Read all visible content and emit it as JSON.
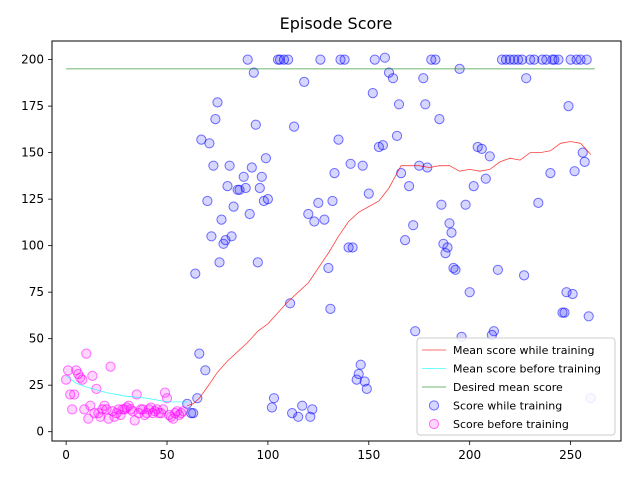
{
  "chart_data": {
    "type": "scatter",
    "title": "Episode Score",
    "xlabel": "",
    "ylabel": "",
    "xlim": [
      -7,
      275
    ],
    "ylim": [
      -5,
      210
    ],
    "x_ticks": [
      0,
      50,
      100,
      150,
      200,
      250
    ],
    "y_ticks": [
      0,
      25,
      50,
      75,
      100,
      125,
      150,
      175,
      200
    ],
    "grid": false,
    "legend_position": "lower-right",
    "colors": {
      "training_line": "#ff0000",
      "before_line": "#00ffff",
      "desired_line": "#008000",
      "training_points": "#0000ff",
      "before_points": "#ff00ff"
    },
    "series": [
      {
        "name": "Mean score while training",
        "kind": "line",
        "x": [
          60,
          63,
          66,
          70,
          75,
          80,
          85,
          90,
          95,
          100,
          105,
          110,
          115,
          120,
          125,
          130,
          135,
          140,
          145,
          150,
          155,
          160,
          163,
          166,
          170,
          175,
          180,
          185,
          190,
          195,
          200,
          205,
          210,
          215,
          220,
          225,
          230,
          235,
          240,
          245,
          250,
          255,
          260
        ],
        "y": [
          14,
          15,
          18,
          24,
          32,
          38,
          43,
          48,
          54,
          58,
          64,
          70,
          75,
          80,
          88,
          96,
          105,
          113,
          118,
          121,
          124,
          131,
          137,
          143,
          143,
          143,
          142,
          143,
          143,
          140,
          141,
          140,
          141,
          145,
          147,
          146,
          150,
          150,
          151,
          155,
          156,
          155,
          149
        ]
      },
      {
        "name": "Mean score before training",
        "kind": "line",
        "x": [
          0,
          5,
          10,
          20,
          30,
          40,
          50,
          60
        ],
        "y": [
          30,
          26,
          24,
          21,
          19,
          18,
          16,
          16
        ]
      },
      {
        "name": "Desired mean score",
        "kind": "line",
        "x": [
          0,
          262
        ],
        "y": [
          195,
          195
        ]
      },
      {
        "name": "Score while training",
        "kind": "scatter",
        "x": [
          60,
          62,
          63,
          64,
          65,
          66,
          67,
          69,
          70,
          71,
          72,
          73,
          74,
          75,
          76,
          77,
          78,
          79,
          80,
          81,
          82,
          83,
          85,
          86,
          88,
          89,
          90,
          91,
          92,
          93,
          94,
          95,
          96,
          97,
          98,
          99,
          100,
          102,
          103,
          105,
          106,
          108,
          110,
          111,
          112,
          113,
          115,
          117,
          118,
          120,
          121,
          122,
          123,
          125,
          126,
          128,
          130,
          131,
          132,
          133,
          135,
          136,
          138,
          140,
          141,
          142,
          144,
          145,
          146,
          147,
          148,
          149,
          150,
          152,
          153,
          155,
          157,
          158,
          160,
          162,
          164,
          165,
          166,
          168,
          170,
          172,
          173,
          175,
          177,
          178,
          179,
          181,
          183,
          185,
          186,
          187,
          188,
          189,
          190,
          191,
          192,
          193,
          195,
          196,
          198,
          200,
          202,
          204,
          206,
          208,
          210,
          211,
          212,
          214,
          216,
          218,
          220,
          222,
          224,
          226,
          227,
          228,
          230,
          232,
          234,
          236,
          238,
          240,
          241,
          242,
          244,
          246,
          247,
          248,
          249,
          250,
          251,
          252,
          253,
          255,
          256,
          257,
          258,
          259,
          260
        ],
        "y": [
          15,
          10,
          10,
          85,
          18,
          42,
          157,
          33,
          124,
          155,
          105,
          143,
          168,
          177,
          91,
          114,
          101,
          103,
          132,
          143,
          105,
          121,
          130,
          130,
          137,
          131,
          200,
          117,
          142,
          193,
          165,
          91,
          131,
          137,
          124,
          147,
          125,
          13,
          18,
          200,
          200,
          200,
          200,
          69,
          10,
          164,
          8,
          14,
          188,
          117,
          8,
          12,
          113,
          123,
          200,
          114,
          88,
          66,
          124,
          139,
          157,
          200,
          200,
          99,
          144,
          99,
          28,
          31,
          36,
          143,
          27,
          23,
          128,
          182,
          200,
          153,
          154,
          201,
          193,
          190,
          159,
          176,
          139,
          103,
          132,
          111,
          54,
          143,
          190,
          176,
          142,
          200,
          200,
          168,
          122,
          101,
          96,
          99,
          112,
          107,
          88,
          87,
          195,
          51,
          122,
          75,
          132,
          153,
          152,
          136,
          148,
          52,
          54,
          87,
          200,
          200,
          200,
          200,
          200,
          200,
          84,
          190,
          200,
          200,
          123,
          200,
          200,
          139,
          200,
          200,
          200,
          64,
          64,
          75,
          175,
          200,
          74,
          140,
          200,
          200,
          150,
          145,
          200,
          62,
          18
        ]
      },
      {
        "name": "Score before training",
        "kind": "scatter",
        "x": [
          0,
          1,
          2,
          3,
          4,
          5,
          6,
          7,
          8,
          9,
          10,
          11,
          12,
          13,
          14,
          15,
          16,
          17,
          18,
          19,
          20,
          21,
          22,
          23,
          24,
          25,
          26,
          27,
          28,
          29,
          30,
          31,
          32,
          33,
          34,
          35,
          36,
          37,
          38,
          39,
          40,
          41,
          42,
          43,
          44,
          45,
          46,
          47,
          48,
          49,
          50,
          51,
          52,
          53,
          54,
          55,
          56,
          57,
          58
        ],
        "y": [
          28,
          33,
          20,
          12,
          20,
          33,
          31,
          29,
          28,
          12,
          42,
          7,
          14,
          30,
          10,
          23,
          10,
          8,
          12,
          14,
          12,
          7,
          35,
          11,
          8,
          10,
          12,
          9,
          12,
          12,
          13,
          14,
          12,
          11,
          6,
          20,
          10,
          12,
          12,
          9,
          10,
          12,
          13,
          10,
          11,
          12,
          10,
          10,
          12,
          21,
          18,
          9,
          8,
          7,
          10,
          11,
          9,
          10,
          11
        ]
      }
    ]
  }
}
